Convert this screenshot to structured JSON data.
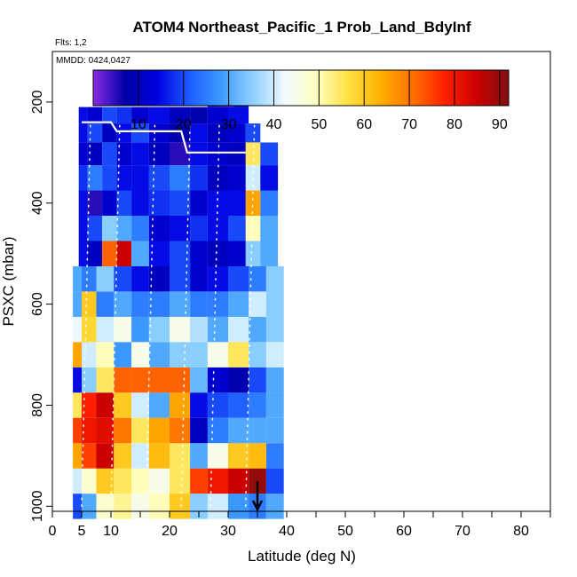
{
  "chart_data": {
    "type": "heatmap",
    "title": "ATOM4 Northeast_Pacific_1 Prob_Land_BdyInf",
    "annotations": [
      "Flts: 1,2",
      "MMDD: 0424,0427"
    ],
    "xlabel": "Latitude (deg N)",
    "ylabel": "PSXC (mbar)",
    "xlim": [
      0,
      85
    ],
    "ylim": [
      1010,
      100
    ],
    "x_ticks": [
      0,
      5,
      10,
      20,
      30,
      40,
      50,
      60,
      70,
      80
    ],
    "y_ticks": [
      200,
      400,
      600,
      800,
      1000
    ],
    "colorbar": {
      "range": [
        0,
        92
      ],
      "ticks": [
        10,
        20,
        30,
        40,
        50,
        60,
        70,
        80,
        90
      ],
      "colors": [
        "#8a2be2",
        "#0000a8",
        "#0000e0",
        "#1e5aff",
        "#3c9bff",
        "#8fd0ff",
        "#f2fbff",
        "#ffffc0",
        "#ffe040",
        "#ffb000",
        "#ff7000",
        "#ff2000",
        "#cc0000",
        "#801010"
      ]
    },
    "layers": [
      {
        "p": 1000,
        "x": [
          4,
          6,
          9,
          12,
          15,
          18,
          22,
          25,
          28,
          32,
          35,
          38
        ],
        "v": [
          20,
          30,
          48,
          52,
          45,
          50,
          60,
          35,
          40,
          28,
          25,
          30
        ]
      },
      {
        "p": 950,
        "x": [
          4,
          6,
          9,
          12,
          15,
          18,
          22,
          25,
          28,
          32,
          35,
          38
        ],
        "v": [
          40,
          48,
          60,
          55,
          50,
          45,
          55,
          75,
          80,
          85,
          90,
          20
        ]
      },
      {
        "p": 900,
        "x": [
          4,
          6,
          9,
          12,
          15,
          18,
          22,
          25,
          28,
          32,
          35,
          38
        ],
        "v": [
          65,
          75,
          85,
          60,
          40,
          62,
          55,
          30,
          45,
          60,
          62,
          25
        ]
      },
      {
        "p": 850,
        "x": [
          4,
          6,
          9,
          12,
          15,
          18,
          22,
          25,
          28,
          32,
          35,
          38
        ],
        "v": [
          75,
          80,
          82,
          70,
          55,
          65,
          70,
          10,
          25,
          30,
          30,
          30
        ]
      },
      {
        "p": 800,
        "x": [
          4,
          6,
          9,
          12,
          15,
          18,
          22,
          25,
          28,
          32,
          35,
          38
        ],
        "v": [
          55,
          78,
          85,
          60,
          40,
          30,
          65,
          15,
          20,
          22,
          25,
          30
        ]
      },
      {
        "p": 750,
        "x": [
          4,
          6,
          9,
          12,
          15,
          18,
          22,
          25,
          28,
          32,
          35,
          38
        ],
        "v": [
          15,
          35,
          55,
          72,
          72,
          72,
          72,
          32,
          12,
          8,
          20,
          30
        ]
      },
      {
        "p": 700,
        "x": [
          4,
          6,
          9,
          12,
          15,
          18,
          22,
          25,
          28,
          32,
          35,
          38
        ],
        "v": [
          65,
          40,
          50,
          28,
          45,
          30,
          35,
          35,
          45,
          55,
          35,
          40
        ]
      },
      {
        "p": 650,
        "x": [
          4,
          6,
          9,
          12,
          15,
          18,
          22,
          25,
          28,
          32,
          35,
          38
        ],
        "v": [
          42,
          58,
          40,
          45,
          28,
          35,
          45,
          38,
          30,
          40,
          30,
          35
        ]
      },
      {
        "p": 600,
        "x": [
          4,
          6,
          9,
          12,
          15,
          18,
          22,
          25,
          28,
          32,
          35,
          38
        ],
        "v": [
          30,
          60,
          25,
          30,
          25,
          25,
          30,
          25,
          25,
          30,
          40,
          35
        ]
      },
      {
        "p": 550,
        "x": [
          4,
          6,
          9,
          12,
          15,
          18,
          22,
          25,
          28,
          32,
          35,
          38
        ],
        "v": [
          30,
          25,
          35,
          20,
          15,
          10,
          20,
          12,
          15,
          20,
          25,
          35
        ]
      },
      {
        "p": 500,
        "x": [
          5,
          7,
          10,
          12,
          15,
          18,
          22,
          25,
          28,
          32,
          34,
          37
        ],
        "v": [
          15,
          10,
          72,
          85,
          30,
          15,
          20,
          12,
          10,
          12,
          35,
          30
        ]
      },
      {
        "p": 450,
        "x": [
          5,
          7,
          10,
          12,
          15,
          18,
          22,
          25,
          28,
          32,
          34,
          37
        ],
        "v": [
          15,
          20,
          35,
          30,
          25,
          12,
          15,
          18,
          15,
          20,
          50,
          30
        ]
      },
      {
        "p": 400,
        "x": [
          5,
          7,
          10,
          12,
          15,
          18,
          22,
          25,
          28,
          32,
          34,
          37
        ],
        "v": [
          15,
          5,
          12,
          20,
          15,
          18,
          20,
          12,
          15,
          15,
          65,
          25
        ]
      },
      {
        "p": 350,
        "x": [
          5,
          7,
          10,
          12,
          15,
          18,
          22,
          25,
          28,
          32,
          34,
          37
        ],
        "v": [
          18,
          25,
          20,
          15,
          15,
          20,
          25,
          18,
          10,
          12,
          40,
          15
        ]
      },
      {
        "p": 300,
        "x": [
          5,
          7,
          10,
          12,
          15,
          18,
          22,
          25,
          28,
          32,
          34,
          37
        ],
        "v": [
          12,
          10,
          20,
          12,
          15,
          10,
          5,
          15,
          12,
          10,
          55,
          20
        ]
      },
      {
        "p": 260,
        "x": [
          5,
          7,
          10,
          12,
          15,
          18,
          22,
          25,
          28,
          32,
          34
        ],
        "v": [
          15,
          20,
          10,
          15,
          20,
          12,
          8,
          15,
          10,
          12,
          20
        ]
      },
      {
        "p": 225,
        "x": [
          5,
          7,
          10,
          12,
          15,
          18,
          22,
          25,
          28,
          32
        ],
        "v": [
          15,
          12,
          20,
          18,
          12,
          15,
          10,
          8,
          12,
          15
        ]
      },
      {
        "p": 195,
        "x": [
          27,
          30,
          32
        ],
        "v": [
          5,
          3,
          8
        ]
      }
    ],
    "tropopause_line": [
      [
        5,
        240
      ],
      [
        10,
        240
      ],
      [
        11,
        258
      ],
      [
        22,
        258
      ],
      [
        23,
        300
      ],
      [
        33,
        300
      ]
    ],
    "top_line": [
      [
        27,
        200
      ],
      [
        32,
        200
      ]
    ],
    "arrow_lat": 35
  }
}
